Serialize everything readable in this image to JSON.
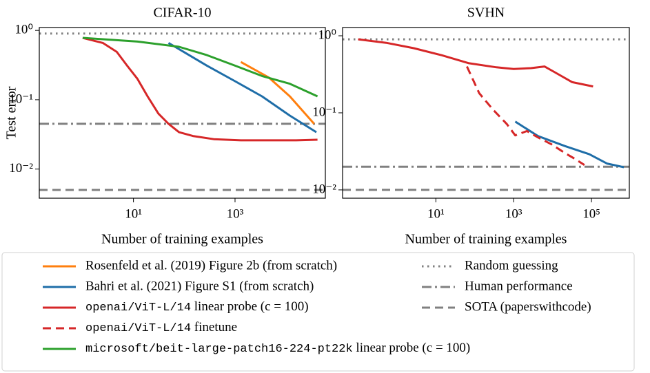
{
  "chart_data": [
    {
      "type": "line",
      "title": "CIFAR-10",
      "xlabel": "Number of training examples",
      "ylabel": "Test error",
      "xscale": "log",
      "yscale": "log",
      "xlim": [
        0.14,
        60000
      ],
      "ylim": [
        0.0038,
        1.1
      ],
      "xticks": [
        {
          "value": 10,
          "label": "10¹"
        },
        {
          "value": 1000,
          "label": "10³"
        }
      ],
      "yticks": [
        {
          "value": 1,
          "label": "10⁰"
        },
        {
          "value": 0.1,
          "label": "10⁻¹"
        },
        {
          "value": 0.01,
          "label": "10⁻²"
        }
      ],
      "series": [
        {
          "name": "Rosenfeld et al. (2019) Figure 2b (from scratch)",
          "color": "#ff7f0e",
          "style": "solid",
          "x": [
            1300,
            4600,
            12000,
            36000
          ],
          "values": [
            0.35,
            0.21,
            0.112,
            0.045
          ]
        },
        {
          "name": "Bahri et al. (2021) Figure S1 (from scratch)",
          "color": "#1f6ea8",
          "style": "solid",
          "x": [
            49,
            280,
            1000,
            3400,
            12000,
            40000
          ],
          "values": [
            0.66,
            0.31,
            0.185,
            0.112,
            0.059,
            0.034
          ]
        },
        {
          "name": "openai/ViT-L/14 linear probe (c = 100)",
          "color": "#d62728",
          "style": "solid",
          "x": [
            1,
            2.5,
            4.7,
            7.5,
            12,
            19,
            31,
            49,
            79,
            148,
            380,
            1300,
            4600,
            16000,
            42000
          ],
          "values": [
            0.78,
            0.66,
            0.49,
            0.31,
            0.2,
            0.112,
            0.063,
            0.045,
            0.034,
            0.03,
            0.027,
            0.026,
            0.026,
            0.026,
            0.0265
          ]
        },
        {
          "name": "microsoft/beit-large-patch16-224-pt22k linear probe (c = 100)",
          "color": "#2ca02c",
          "style": "solid",
          "x": [
            1,
            12,
            79,
            280,
            1000,
            3400,
            12000,
            42000
          ],
          "values": [
            0.78,
            0.69,
            0.58,
            0.44,
            0.31,
            0.22,
            0.17,
            0.112
          ]
        }
      ],
      "reference_lines": [
        {
          "name": "Random guessing",
          "color": "#808080",
          "style": "dotted",
          "value": 0.9
        },
        {
          "name": "Human performance",
          "color": "#808080",
          "style": "dashdot",
          "value": 0.045
        },
        {
          "name": "SOTA (paperswithcode)",
          "color": "#808080",
          "style": "dashed",
          "value": 0.005
        }
      ]
    },
    {
      "type": "line",
      "title": "SVHN",
      "xlabel": "Number of training examples",
      "xscale": "log",
      "yscale": "log",
      "xlim": [
        0.04,
        940000
      ],
      "ylim": [
        0.0078,
        1.28
      ],
      "xticks": [
        {
          "value": 10,
          "label": "10¹"
        },
        {
          "value": 1000,
          "label": "10³"
        },
        {
          "value": 100000,
          "label": "10⁵"
        }
      ],
      "yticks": [
        {
          "value": 1,
          "label": "10⁰"
        },
        {
          "value": 0.1,
          "label": "10⁻¹"
        },
        {
          "value": 0.01,
          "label": "10⁻²"
        }
      ],
      "series": [
        {
          "name": "Bahri et al. (2021) Figure S1 (from scratch)",
          "color": "#1f6ea8",
          "style": "solid",
          "x": [
            1100,
            4200,
            21000,
            88000,
            250000,
            680000
          ],
          "values": [
            0.077,
            0.05,
            0.037,
            0.029,
            0.022,
            0.0197
          ]
        },
        {
          "name": "openai/ViT-L/14 linear probe (c = 100)",
          "color": "#d62728",
          "style": "solid",
          "x": [
            0.1,
            0.53,
            2.7,
            14,
            71,
            360,
            1000,
            2800,
            6200,
            11000,
            32000,
            110000
          ],
          "values": [
            0.9,
            0.81,
            0.69,
            0.56,
            0.44,
            0.39,
            0.37,
            0.38,
            0.4,
            0.34,
            0.25,
            0.22
          ]
        },
        {
          "name": "openai/ViT-L/14 finetune",
          "color": "#d62728",
          "style": "dashed",
          "x": [
            63,
            130,
            300,
            660,
            1100,
            2200,
            4200,
            9400,
            21000,
            39000,
            66000
          ],
          "values": [
            0.4,
            0.18,
            0.109,
            0.072,
            0.051,
            0.058,
            0.048,
            0.039,
            0.03,
            0.025,
            0.021
          ]
        }
      ],
      "reference_lines": [
        {
          "name": "Random guessing",
          "color": "#808080",
          "style": "dotted",
          "value": 0.9
        },
        {
          "name": "Human performance",
          "color": "#808080",
          "style": "dashdot",
          "value": 0.02
        },
        {
          "name": "SOTA (paperswithcode)",
          "color": "#808080",
          "style": "dashed",
          "value": 0.01
        }
      ]
    }
  ]
}
